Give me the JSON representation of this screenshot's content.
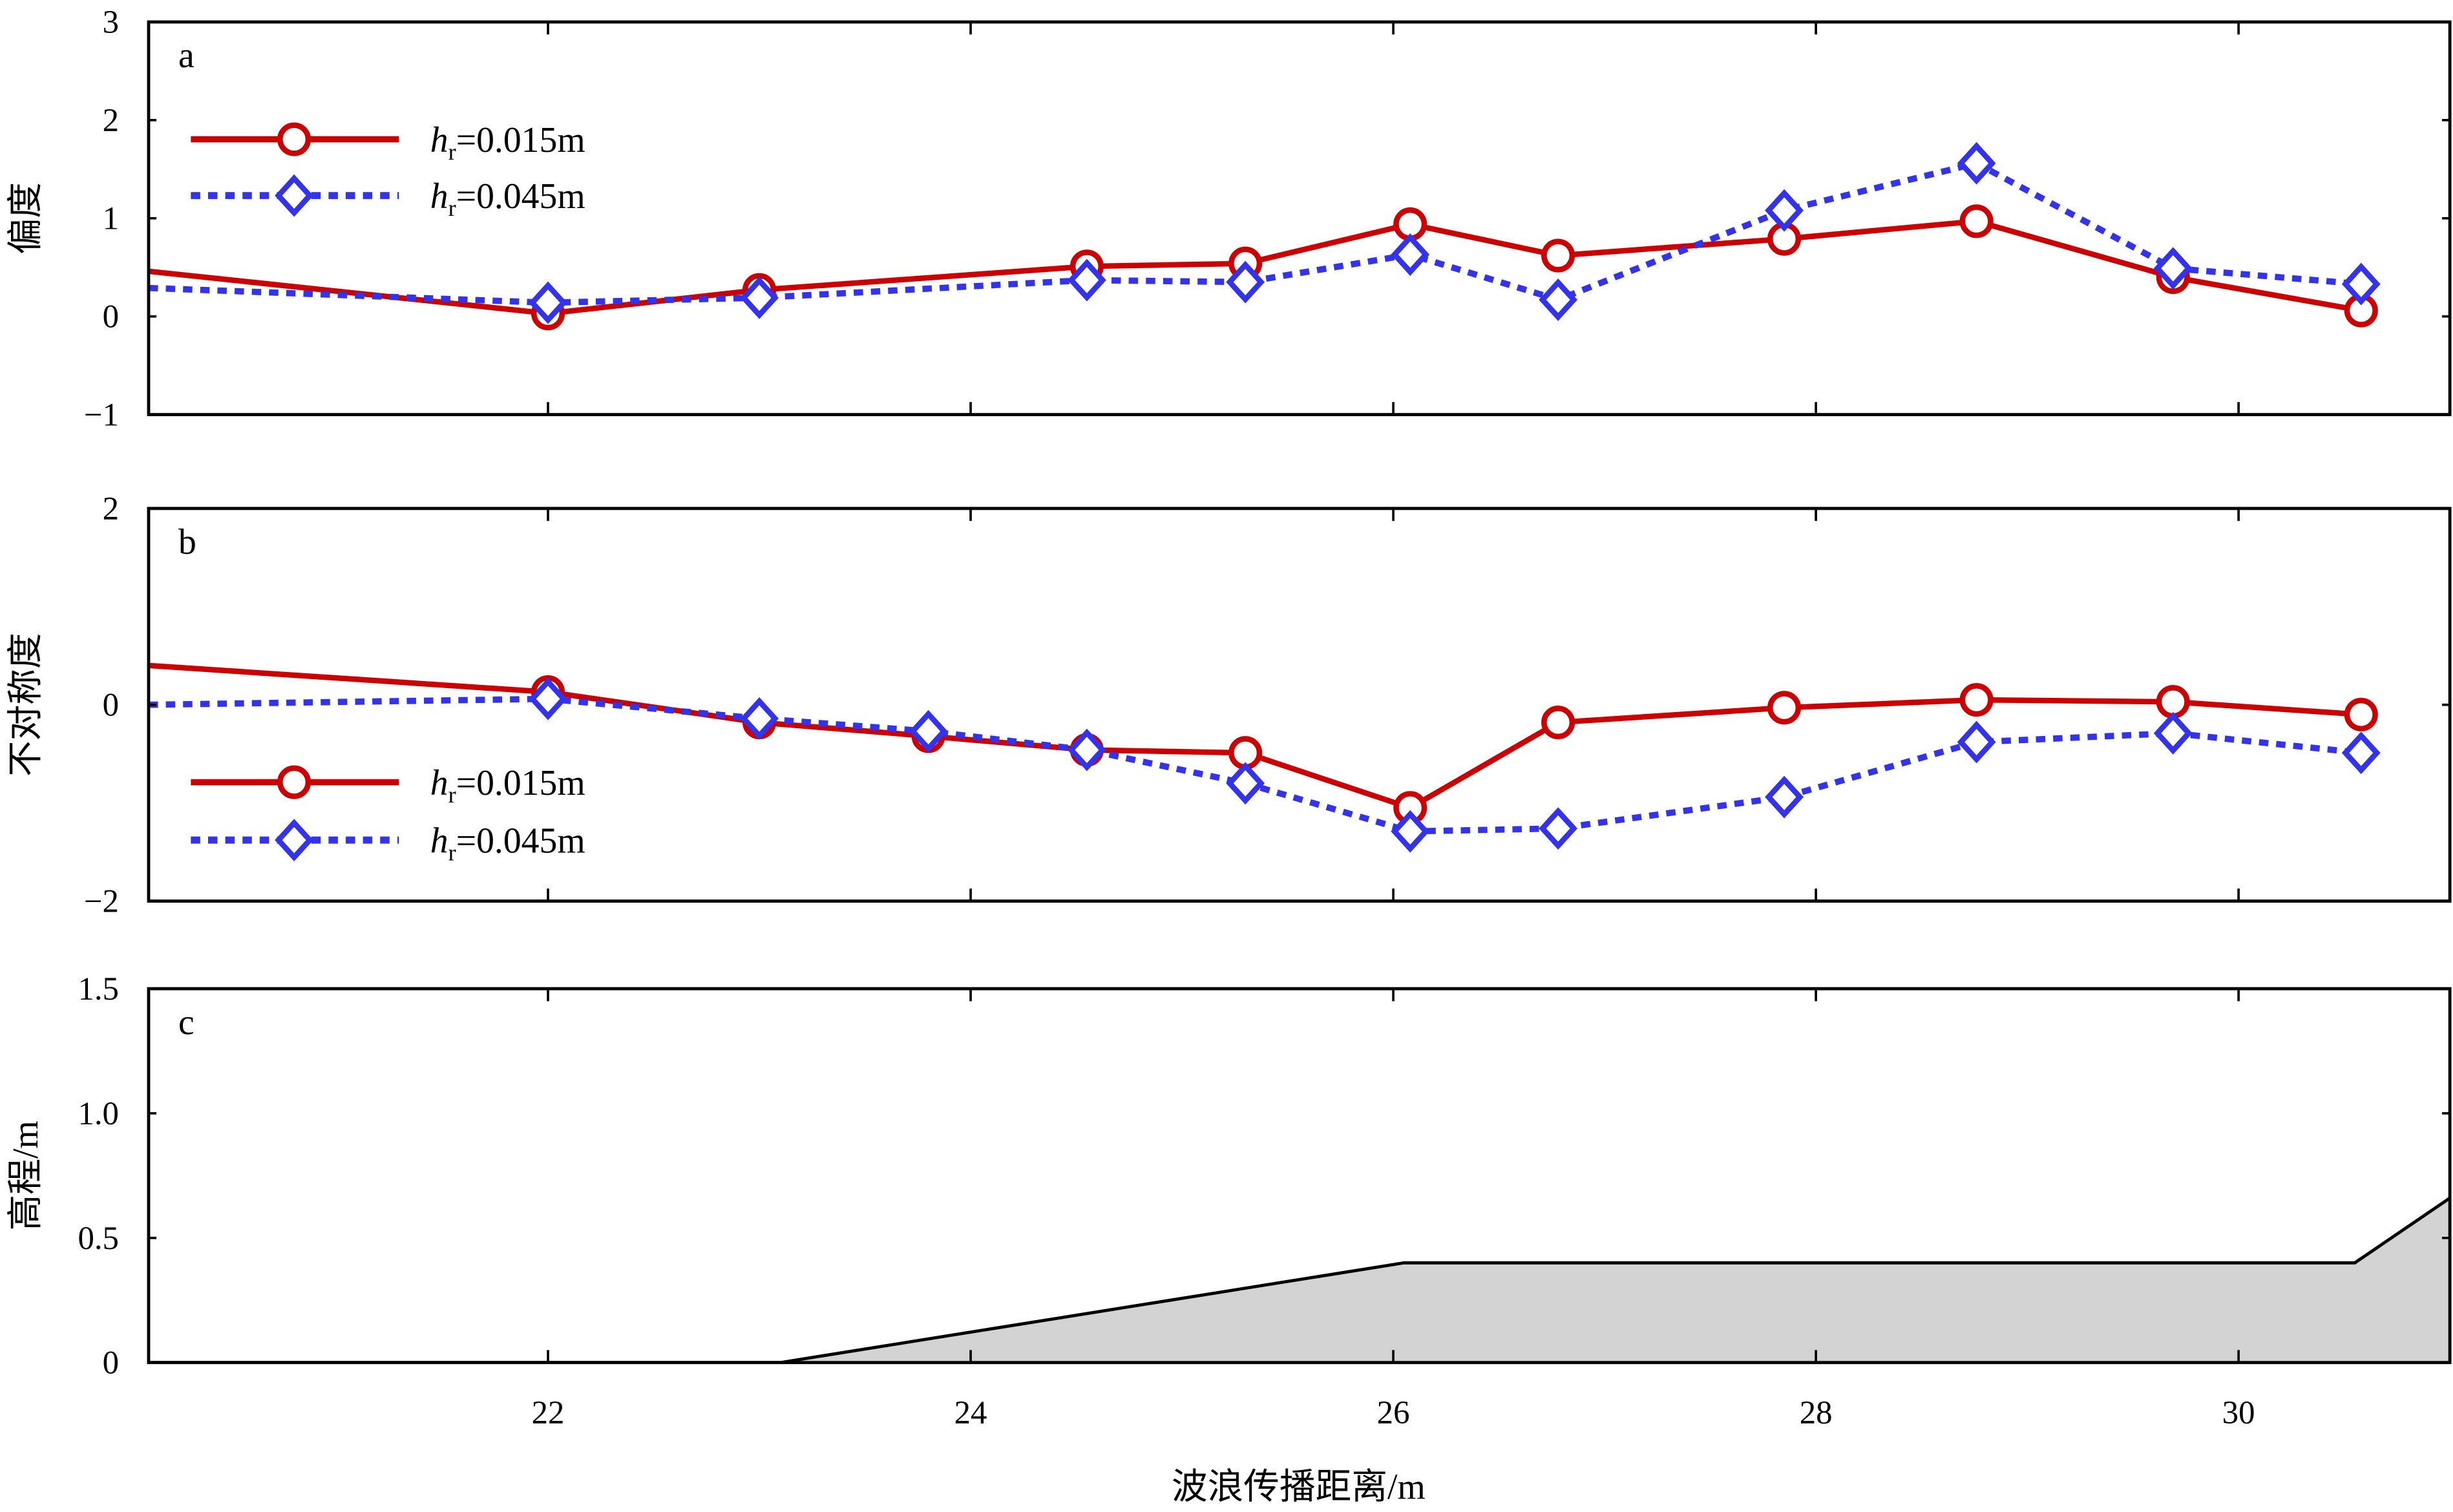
{
  "chart_data": [
    {
      "type": "line",
      "panel_label": "a",
      "ylabel": "偏度",
      "xlim": [
        20.11,
        31.0
      ],
      "ylim": [
        -1,
        3
      ],
      "yticks": [
        -1,
        0,
        1,
        2,
        3
      ],
      "ytick_labels": [
        "−1",
        "0",
        "1",
        "2",
        "3"
      ],
      "legend_placement": "upper-left",
      "series": [
        {
          "name": "hr=0.015m",
          "name_parts": {
            "italic": "h",
            "sub": "r",
            "rest": "=0.015m"
          },
          "color": "#cc0000",
          "style": "solid",
          "marker": "circle",
          "x": [
            20.11,
            22.0,
            23.0,
            24.55,
            25.3,
            26.08,
            26.78,
            27.85,
            28.76,
            29.69,
            30.58
          ],
          "y": [
            0.46,
            0.03,
            0.27,
            0.51,
            0.54,
            0.94,
            0.62,
            0.79,
            0.97,
            0.4,
            0.06
          ]
        },
        {
          "name": "hr=0.045m",
          "name_parts": {
            "italic": "h",
            "sub": "r",
            "rest": "=0.045m"
          },
          "color": "#3333ee",
          "style": "dotted",
          "marker": "diamond",
          "x": [
            20.11,
            22.0,
            23.0,
            24.55,
            25.3,
            26.08,
            26.78,
            27.85,
            28.76,
            29.69,
            30.58
          ],
          "y": [
            0.29,
            0.14,
            0.19,
            0.37,
            0.35,
            0.63,
            0.17,
            1.08,
            1.56,
            0.49,
            0.33
          ]
        }
      ]
    },
    {
      "type": "line",
      "panel_label": "b",
      "ylabel": "不对称度",
      "xlim": [
        20.11,
        31.0
      ],
      "ylim": [
        -2,
        2
      ],
      "yticks": [
        -2,
        0,
        2
      ],
      "ytick_labels": [
        "−2",
        "0",
        "2"
      ],
      "legend_placement": "lower-left",
      "series": [
        {
          "name": "hr=0.015m",
          "name_parts": {
            "italic": "h",
            "sub": "r",
            "rest": "=0.015m"
          },
          "color": "#cc0000",
          "style": "solid",
          "marker": "circle",
          "x": [
            20.11,
            22.0,
            23.0,
            23.8,
            24.55,
            25.3,
            26.08,
            26.78,
            27.85,
            28.76,
            29.69,
            30.58
          ],
          "y": [
            0.4,
            0.13,
            -0.18,
            -0.32,
            -0.46,
            -0.49,
            -1.05,
            -0.18,
            -0.03,
            0.05,
            0.03,
            -0.1
          ]
        },
        {
          "name": "hr=0.045m",
          "name_parts": {
            "italic": "h",
            "sub": "r",
            "rest": "=0.045m"
          },
          "color": "#3333ee",
          "style": "dotted",
          "marker": "diamond",
          "x": [
            20.11,
            22.0,
            23.0,
            23.8,
            24.55,
            25.3,
            26.08,
            26.78,
            27.85,
            28.76,
            29.69,
            30.58
          ],
          "y": [
            0.0,
            0.06,
            -0.14,
            -0.27,
            -0.46,
            -0.8,
            -1.29,
            -1.26,
            -0.94,
            -0.38,
            -0.29,
            -0.49
          ]
        }
      ]
    },
    {
      "type": "area",
      "panel_label": "c",
      "ylabel": "高程/m",
      "xlabel": "波浪传播距离/m",
      "xlim": [
        20.11,
        31.0
      ],
      "ylim": [
        0,
        1.5
      ],
      "yticks": [
        0,
        0.5,
        1.0,
        1.5
      ],
      "ytick_labels": [
        "0",
        "0.5",
        "1.0",
        "1.5"
      ],
      "xticks": [
        22,
        24,
        26,
        28,
        30
      ],
      "xtick_labels": [
        "22",
        "24",
        "26",
        "28",
        "30"
      ],
      "fill_color": "#d3d3d3",
      "series": [
        {
          "x": [
            20.11,
            23.1,
            26.05,
            30.55,
            31.0
          ],
          "y": [
            0,
            0,
            0.4,
            0.4,
            0.66
          ]
        }
      ]
    }
  ]
}
